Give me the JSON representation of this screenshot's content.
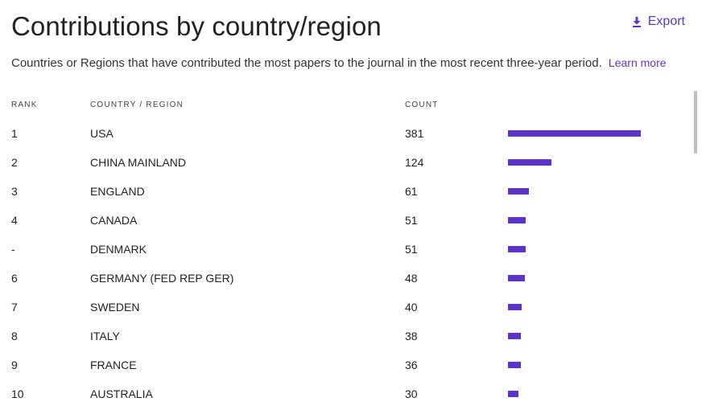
{
  "colors": {
    "accent": "#5f35c6",
    "bar": "#5e33c7",
    "scrollbar": "#bdbdbd"
  },
  "header": {
    "title": "Contributions by country/region",
    "export_label": "Export",
    "export_icon": "download-icon"
  },
  "description": {
    "text": "Countries or Regions that have contributed the most papers to the journal in the most recent three-year period.",
    "learn_more": "Learn more"
  },
  "table": {
    "columns": {
      "rank": "RANK",
      "country": "COUNTRY / REGION",
      "count": "COUNT"
    },
    "max_count": 381,
    "rows": [
      {
        "rank": "1",
        "country": "USA",
        "count": 381
      },
      {
        "rank": "2",
        "country": "CHINA MAINLAND",
        "count": 124
      },
      {
        "rank": "3",
        "country": "ENGLAND",
        "count": 61
      },
      {
        "rank": "4",
        "country": "CANADA",
        "count": 51
      },
      {
        "rank": "-",
        "country": "DENMARK",
        "count": 51
      },
      {
        "rank": "6",
        "country": "GERMANY (FED REP GER)",
        "count": 48
      },
      {
        "rank": "7",
        "country": "SWEDEN",
        "count": 40
      },
      {
        "rank": "8",
        "country": "ITALY",
        "count": 38
      },
      {
        "rank": "9",
        "country": "FRANCE",
        "count": 36
      },
      {
        "rank": "10",
        "country": "AUSTRALIA",
        "count": 30
      }
    ]
  }
}
